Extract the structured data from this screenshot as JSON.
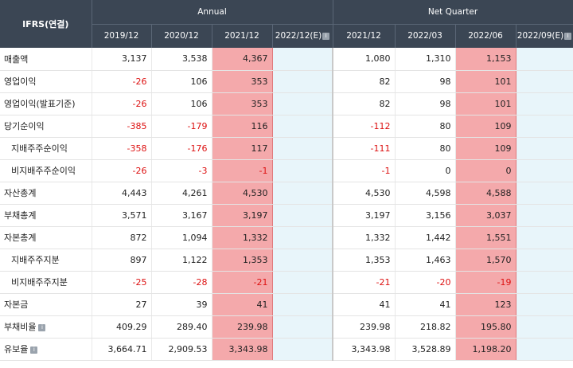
{
  "header": {
    "corner": "IFRS(연결)",
    "annual_label": "Annual",
    "quarter_label": "Net Quarter",
    "annual_periods": [
      "2019/12",
      "2020/12",
      "2021/12",
      "2022/12(E)"
    ],
    "quarter_periods": [
      "2021/12",
      "2022/03",
      "2022/06",
      "2022/09(E)"
    ]
  },
  "rows": [
    {
      "label": "매출액",
      "indent": false,
      "annual": [
        "3,137",
        "3,538",
        "4,367",
        ""
      ],
      "quarter": [
        "1,080",
        "1,310",
        "1,153",
        ""
      ]
    },
    {
      "label": "영업이익",
      "indent": false,
      "annual": [
        "-26",
        "106",
        "353",
        ""
      ],
      "quarter": [
        "82",
        "98",
        "101",
        ""
      ]
    },
    {
      "label": "영업이익(발표기준)",
      "indent": false,
      "annual": [
        "-26",
        "106",
        "353",
        ""
      ],
      "quarter": [
        "82",
        "98",
        "101",
        ""
      ]
    },
    {
      "label": "당기순이익",
      "indent": false,
      "annual": [
        "-385",
        "-179",
        "116",
        ""
      ],
      "quarter": [
        "-112",
        "80",
        "109",
        ""
      ]
    },
    {
      "label": "지배주주순이익",
      "indent": true,
      "annual": [
        "-358",
        "-176",
        "117",
        ""
      ],
      "quarter": [
        "-111",
        "80",
        "109",
        ""
      ]
    },
    {
      "label": "비지배주주순이익",
      "indent": true,
      "annual": [
        "-26",
        "-3",
        "-1",
        ""
      ],
      "quarter": [
        "-1",
        "0",
        "0",
        ""
      ]
    },
    {
      "label": "자산총계",
      "indent": false,
      "annual": [
        "4,443",
        "4,261",
        "4,530",
        ""
      ],
      "quarter": [
        "4,530",
        "4,598",
        "4,588",
        ""
      ]
    },
    {
      "label": "부채총계",
      "indent": false,
      "annual": [
        "3,571",
        "3,167",
        "3,197",
        ""
      ],
      "quarter": [
        "3,197",
        "3,156",
        "3,037",
        ""
      ]
    },
    {
      "label": "자본총계",
      "indent": false,
      "annual": [
        "872",
        "1,094",
        "1,332",
        ""
      ],
      "quarter": [
        "1,332",
        "1,442",
        "1,551",
        ""
      ]
    },
    {
      "label": "지배주주지분",
      "indent": true,
      "annual": [
        "897",
        "1,122",
        "1,353",
        ""
      ],
      "quarter": [
        "1,353",
        "1,463",
        "1,570",
        ""
      ]
    },
    {
      "label": "비지배주주지분",
      "indent": true,
      "annual": [
        "-25",
        "-28",
        "-21",
        ""
      ],
      "quarter": [
        "-21",
        "-20",
        "-19",
        ""
      ]
    },
    {
      "label": "자본금",
      "indent": false,
      "annual": [
        "27",
        "39",
        "41",
        ""
      ],
      "quarter": [
        "41",
        "41",
        "123",
        ""
      ]
    },
    {
      "label": "부채비율",
      "indent": false,
      "info": true,
      "annual": [
        "409.29",
        "289.40",
        "239.98",
        ""
      ],
      "quarter": [
        "239.98",
        "218.82",
        "195.80",
        ""
      ]
    },
    {
      "label": "유보율",
      "indent": false,
      "info": true,
      "annual": [
        "3,664.71",
        "2,909.53",
        "3,343.98",
        ""
      ],
      "quarter": [
        "3,343.98",
        "3,528.89",
        "1,198.20",
        ""
      ]
    }
  ],
  "colors": {
    "header_bg": "#3b4654",
    "highlight": "#f4a9ab",
    "estimate_bg": "#e8f5fa",
    "negative": "#dd1111"
  },
  "icons": {
    "info": "i"
  }
}
